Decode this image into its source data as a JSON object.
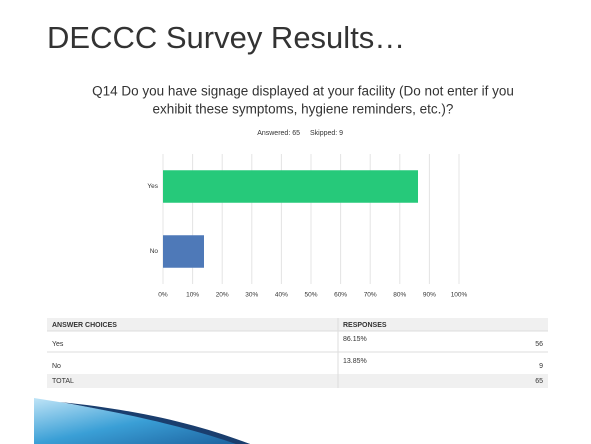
{
  "slide_title": "DECCC Survey Results…",
  "question_lines": [
    "Q14 Do you have signage displayed at your facility (Do not enter if you",
    "exhibit these symptoms, hygiene reminders, etc.)?"
  ],
  "answered": "Answered: 65",
  "skipped": "Skipped: 9",
  "chart_data": {
    "type": "hbar",
    "categories": [
      "Yes",
      "No"
    ],
    "values": [
      86.15,
      13.85
    ],
    "colors": [
      "#26c97a",
      "#4e79b8"
    ],
    "xlim": [
      0,
      100
    ],
    "xticks": [
      {
        "value": 0,
        "label": "0%"
      },
      {
        "value": 10,
        "label": "10%"
      },
      {
        "value": 20,
        "label": "20%"
      },
      {
        "value": 30,
        "label": "30%"
      },
      {
        "value": 40,
        "label": "40%"
      },
      {
        "value": 50,
        "label": "50%"
      },
      {
        "value": 60,
        "label": "60%"
      },
      {
        "value": 70,
        "label": "70%"
      },
      {
        "value": 80,
        "label": "80%"
      },
      {
        "value": 90,
        "label": "90%"
      },
      {
        "value": 100,
        "label": "100%"
      }
    ],
    "grid": true
  },
  "table": {
    "headers": [
      "ANSWER CHOICES",
      "RESPONSES"
    ],
    "rows": [
      {
        "choice": "Yes",
        "percent": "86.15%",
        "count": 56
      },
      {
        "choice": "No",
        "percent": "13.85%",
        "count": 9
      }
    ],
    "total": {
      "label": "TOTAL",
      "count": 65
    }
  }
}
